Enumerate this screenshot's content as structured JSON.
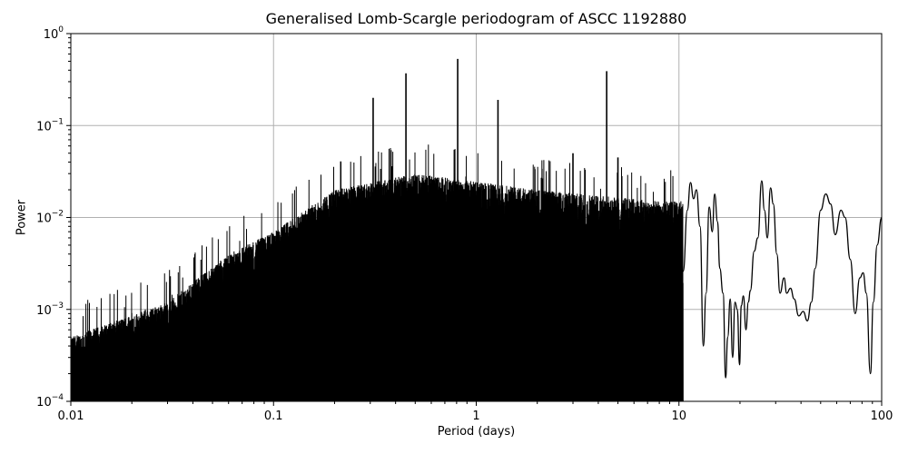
{
  "chart_data": {
    "type": "line",
    "title": "Generalised Lomb-Scargle periodogram of ASCC 1192880",
    "xlabel": "Period (days)",
    "ylabel": "Power",
    "xscale": "log",
    "yscale": "log",
    "xlim": [
      0.01,
      100
    ],
    "ylim": [
      0.0001,
      1
    ],
    "grid": true,
    "x_ticks": [
      "0.01",
      "0.1",
      "1",
      "10",
      "100"
    ],
    "y_ticks": [
      {
        "base": "10",
        "exp": "0"
      },
      {
        "base": "10",
        "exp": "−1"
      },
      {
        "base": "10",
        "exp": "−2"
      },
      {
        "base": "10",
        "exp": "−3"
      },
      {
        "base": "10",
        "exp": "−4"
      }
    ],
    "line_color": "#000000",
    "grid_color": "#b0b0b0",
    "notable_peaks": [
      {
        "period": 0.31,
        "power": 0.2
      },
      {
        "period": 0.45,
        "power": 0.37
      },
      {
        "period": 0.81,
        "power": 0.53
      },
      {
        "period": 1.28,
        "power": 0.19
      },
      {
        "period": 4.4,
        "power": 0.39
      },
      {
        "period": 3.0,
        "power": 0.05
      },
      {
        "period": 5.0,
        "power": 0.045
      }
    ],
    "envelope": [
      {
        "period": 0.01,
        "power": 0.0005
      },
      {
        "period": 0.03,
        "power": 0.0012
      },
      {
        "period": 0.06,
        "power": 0.004
      },
      {
        "period": 0.1,
        "power": 0.007
      },
      {
        "period": 0.2,
        "power": 0.02
      },
      {
        "period": 0.5,
        "power": 0.03
      },
      {
        "period": 2,
        "power": 0.02
      },
      {
        "period": 8,
        "power": 0.015
      }
    ],
    "smooth_tail": [
      [
        10.5,
        0.0026
      ],
      [
        11,
        0.012
      ],
      [
        11.4,
        0.024
      ],
      [
        11.8,
        0.016
      ],
      [
        12.2,
        0.02
      ],
      [
        12.7,
        0.008
      ],
      [
        13.2,
        0.0004
      ],
      [
        13.6,
        0.0015
      ],
      [
        14.1,
        0.013
      ],
      [
        14.6,
        0.007
      ],
      [
        15.0,
        0.018
      ],
      [
        15.5,
        0.009
      ],
      [
        15.9,
        0.0028
      ],
      [
        16.5,
        0.0015
      ],
      [
        17.0,
        0.00018
      ],
      [
        17.4,
        0.0005
      ],
      [
        17.9,
        0.0013
      ],
      [
        18.4,
        0.0003
      ],
      [
        18.9,
        0.0012
      ],
      [
        19.4,
        0.001
      ],
      [
        19.9,
        0.00025
      ],
      [
        20.3,
        0.0011
      ],
      [
        20.8,
        0.0014
      ],
      [
        21.4,
        0.0006
      ],
      [
        22.0,
        0.0012
      ],
      [
        22.5,
        0.0016
      ],
      [
        23.5,
        0.0043
      ],
      [
        24.5,
        0.006
      ],
      [
        25.6,
        0.025
      ],
      [
        26.4,
        0.012
      ],
      [
        27.3,
        0.006
      ],
      [
        28.3,
        0.021
      ],
      [
        29.2,
        0.014
      ],
      [
        30.4,
        0.004
      ],
      [
        31.5,
        0.0015
      ],
      [
        33.0,
        0.0022
      ],
      [
        34.0,
        0.0015
      ],
      [
        35.5,
        0.0017
      ],
      [
        37,
        0.0013
      ],
      [
        39,
        0.00085
      ],
      [
        41,
        0.00095
      ],
      [
        43,
        0.00075
      ],
      [
        45,
        0.0012
      ],
      [
        47,
        0.0028
      ],
      [
        50,
        0.012
      ],
      [
        53,
        0.018
      ],
      [
        56,
        0.014
      ],
      [
        59,
        0.0065
      ],
      [
        63,
        0.012
      ],
      [
        66,
        0.01
      ],
      [
        70,
        0.0035
      ],
      [
        74,
        0.0009
      ],
      [
        78,
        0.0022
      ],
      [
        81,
        0.0025
      ],
      [
        84,
        0.0015
      ],
      [
        88,
        0.0002
      ],
      [
        91,
        0.0012
      ],
      [
        95,
        0.005
      ],
      [
        100,
        0.01
      ]
    ]
  }
}
